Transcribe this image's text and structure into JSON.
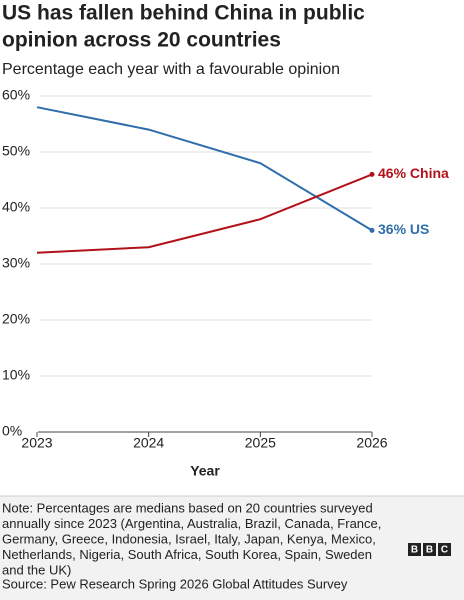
{
  "chart_data": {
    "type": "line",
    "title": [
      "US has fallen behind China in public",
      "opinion across 20 countries"
    ],
    "subtitle": "Percentage each year with a favourable opinion",
    "x_label": "Year",
    "x": [
      2023,
      2024,
      2025,
      2026
    ],
    "xlim": [
      2023,
      2026
    ],
    "xticks": [
      2023,
      2024,
      2025,
      2026
    ],
    "ylim": [
      0,
      60
    ],
    "yticks": [
      {
        "value": 0,
        "label": "0%"
      },
      {
        "value": 10,
        "label": "10%"
      },
      {
        "value": 20,
        "label": "20%"
      },
      {
        "value": 30,
        "label": "30%"
      },
      {
        "value": 40,
        "label": "40%"
      },
      {
        "value": 50,
        "label": "50%"
      },
      {
        "value": 60,
        "label": "60%"
      }
    ],
    "grid": true,
    "series": [
      {
        "name": "US",
        "color": "#2f6eab",
        "values": [
          58,
          54,
          48,
          36
        ],
        "value_labels": [
          null,
          null,
          null,
          "36% US"
        ]
      },
      {
        "name": "China",
        "color": "#b3111a",
        "values": [
          32,
          33,
          38,
          46
        ],
        "value_labels": [
          null,
          null,
          null,
          "46% China"
        ]
      }
    ],
    "note": [
      "Note: Percentages are medians based on 20 countries surveyed",
      "annually since 2023 (Argentina, Australia, Brazil, Canada, France,",
      "Germany, Greece, Indonesia, Israel, Italy, Japan, Kenya, Mexico,",
      "Netherlands, Nigeria, South Africa, South Korea, Spain, Sweden",
      "and the UK)"
    ],
    "source": "Source: Pew Research Spring 2026 Global Attitudes Survey",
    "logo": [
      "B",
      "B",
      "C"
    ]
  }
}
